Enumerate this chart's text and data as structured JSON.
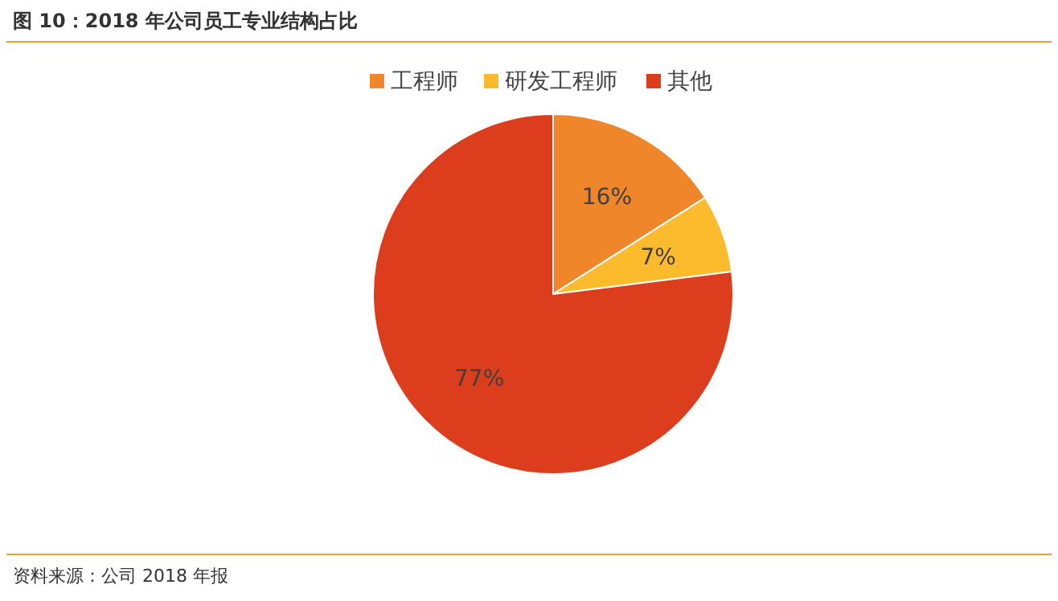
{
  "chart_data": {
    "type": "pie",
    "title": "图 10：2018 年公司员工专业结构占比",
    "categories": [
      "工程师",
      "研发工程师",
      "其他"
    ],
    "values": [
      16,
      7,
      77
    ],
    "colors": [
      "#f0862a",
      "#fbbb2c",
      "#dc3d1d"
    ],
    "value_labels": [
      "16%",
      "7%",
      "77%"
    ],
    "legend": "top",
    "annotations": [
      "资料来源：公司 2018 年报"
    ]
  }
}
